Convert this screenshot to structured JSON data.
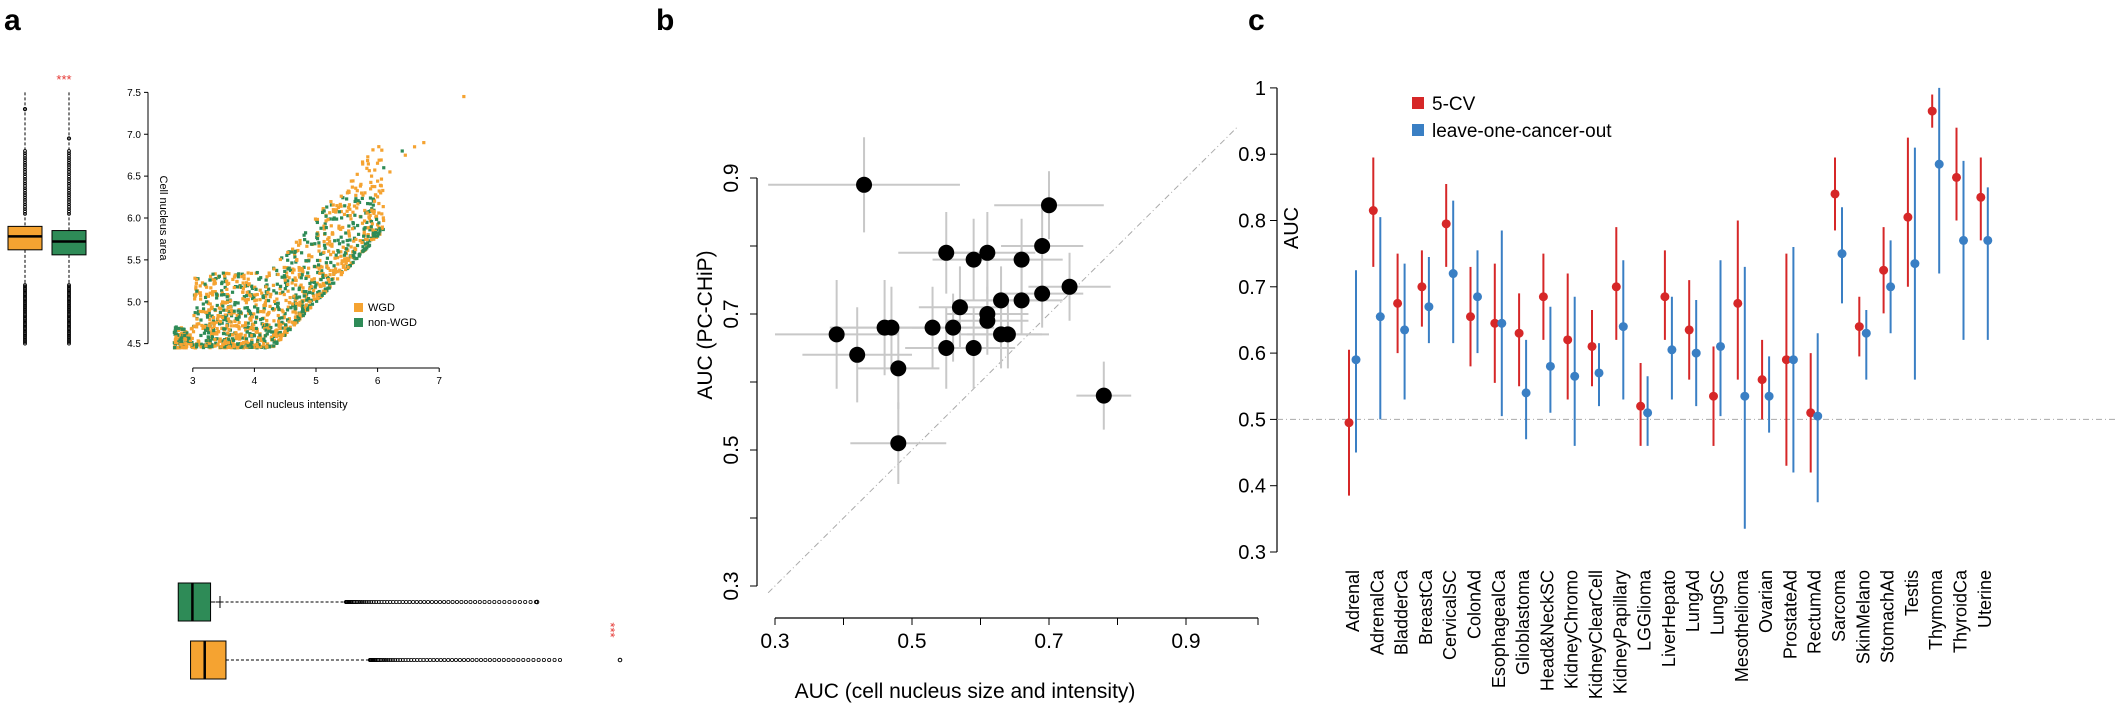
{
  "panels": {
    "a": "a",
    "b": "b",
    "c": "c"
  },
  "chart_data": [
    {
      "type": "scatter",
      "panel": "a",
      "xlabel": "Cell nucleus intensity",
      "ylabel": "Cell nucleus area",
      "xticks": [
        "3",
        "4",
        "5",
        "6",
        "7"
      ],
      "yticks": [
        "4.5",
        "5.0",
        "5.5",
        "6.0",
        "6.5",
        "7.0",
        "7.5"
      ],
      "xlim": [
        2.5,
        7.5
      ],
      "ylim": [
        4.4,
        7.6
      ],
      "legend": [
        "WGD",
        "non-WGD"
      ],
      "legend_position": "right",
      "colors": {
        "WGD": "#f5a331",
        "non-WGD": "#2e8b57"
      },
      "significance_top": "***",
      "significance_right": "***",
      "marginal_boxplots": {
        "area": {
          "WGD": {
            "q1": 5.62,
            "median": 5.78,
            "q3": 5.9
          },
          "non-WGD": {
            "q1": 5.56,
            "median": 5.72,
            "q3": 5.85
          }
        },
        "intensity": {
          "non-WGD": {
            "q1": 3.9,
            "median": 4.0,
            "q3": 4.1
          },
          "WGD": {
            "q1": 4.1,
            "median": 4.2,
            "q3": 4.35
          }
        }
      }
    },
    {
      "type": "scatter",
      "panel": "b",
      "xlabel": "AUC (cell nucleus size and intensity)",
      "ylabel": "AUC (PC-CHiP)",
      "xticks": [
        "0.3",
        "0.5",
        "0.7",
        "0.9"
      ],
      "yticks": [
        "0.3",
        "0.5",
        "0.7",
        "0.9"
      ],
      "xlim": [
        0.28,
        0.98
      ],
      "ylim": [
        0.28,
        1.0
      ],
      "diagonal": true,
      "points": [
        {
          "x": 0.43,
          "y": 0.89,
          "xerr": 0.14,
          "yerr": 0.07
        },
        {
          "x": 0.7,
          "y": 0.86,
          "xerr": 0.08,
          "yerr": 0.05
        },
        {
          "x": 0.55,
          "y": 0.79,
          "xerr": 0.07,
          "yerr": 0.06
        },
        {
          "x": 0.61,
          "y": 0.79,
          "xerr": 0.07,
          "yerr": 0.06
        },
        {
          "x": 0.69,
          "y": 0.8,
          "xerr": 0.06,
          "yerr": 0.06
        },
        {
          "x": 0.59,
          "y": 0.78,
          "xerr": 0.06,
          "yerr": 0.06
        },
        {
          "x": 0.66,
          "y": 0.78,
          "xerr": 0.06,
          "yerr": 0.06
        },
        {
          "x": 0.73,
          "y": 0.74,
          "xerr": 0.06,
          "yerr": 0.05
        },
        {
          "x": 0.69,
          "y": 0.73,
          "xerr": 0.06,
          "yerr": 0.05
        },
        {
          "x": 0.63,
          "y": 0.72,
          "xerr": 0.06,
          "yerr": 0.05
        },
        {
          "x": 0.66,
          "y": 0.72,
          "xerr": 0.06,
          "yerr": 0.05
        },
        {
          "x": 0.57,
          "y": 0.71,
          "xerr": 0.06,
          "yerr": 0.06
        },
        {
          "x": 0.61,
          "y": 0.7,
          "xerr": 0.06,
          "yerr": 0.05
        },
        {
          "x": 0.61,
          "y": 0.69,
          "xerr": 0.06,
          "yerr": 0.05
        },
        {
          "x": 0.53,
          "y": 0.68,
          "xerr": 0.07,
          "yerr": 0.06
        },
        {
          "x": 0.56,
          "y": 0.68,
          "xerr": 0.06,
          "yerr": 0.05
        },
        {
          "x": 0.46,
          "y": 0.68,
          "xerr": 0.08,
          "yerr": 0.07
        },
        {
          "x": 0.47,
          "y": 0.68,
          "xerr": 0.07,
          "yerr": 0.06
        },
        {
          "x": 0.63,
          "y": 0.67,
          "xerr": 0.06,
          "yerr": 0.05
        },
        {
          "x": 0.64,
          "y": 0.67,
          "xerr": 0.06,
          "yerr": 0.05
        },
        {
          "x": 0.39,
          "y": 0.67,
          "xerr": 0.09,
          "yerr": 0.08
        },
        {
          "x": 0.55,
          "y": 0.65,
          "xerr": 0.06,
          "yerr": 0.06
        },
        {
          "x": 0.59,
          "y": 0.65,
          "xerr": 0.06,
          "yerr": 0.06
        },
        {
          "x": 0.42,
          "y": 0.64,
          "xerr": 0.08,
          "yerr": 0.07
        },
        {
          "x": 0.48,
          "y": 0.62,
          "xerr": 0.06,
          "yerr": 0.06
        },
        {
          "x": 0.78,
          "y": 0.58,
          "xerr": 0.04,
          "yerr": 0.05
        },
        {
          "x": 0.48,
          "y": 0.51,
          "xerr": 0.07,
          "yerr": 0.06
        }
      ]
    },
    {
      "type": "scatter",
      "panel": "c",
      "ylabel": "AUC",
      "yticks": [
        "0.3",
        "0.4",
        "0.5",
        "0.6",
        "0.7",
        "0.8",
        "0.9",
        "1"
      ],
      "ylim": [
        0.3,
        1.0
      ],
      "reference_line": 0.5,
      "legend": [
        "5-CV",
        "leave-one-cancer-out"
      ],
      "legend_position": "top-left",
      "colors": {
        "5-CV": "#d62728",
        "leave-one-cancer-out": "#3a7fc4"
      },
      "categories": [
        "Adrenal",
        "AdrenalCa",
        "BladderCa",
        "BreastCa",
        "CervicalSC",
        "ColonAd",
        "EsophagealCa",
        "Glioblastoma",
        "Head&NeckSC",
        "KidneyChromo",
        "KidneyClearCell",
        "KidneyPapillary",
        "LGGlioma",
        "LiverHepato",
        "LungAd",
        "LungSC",
        "Mesothelioma",
        "Ovarian",
        "ProstateAd",
        "RectumAd",
        "Sarcoma",
        "SkinMelano",
        "StomachAd",
        "Testis",
        "Thymoma",
        "ThyroidCa",
        "Uterine"
      ],
      "series": [
        {
          "name": "5-CV",
          "values": [
            0.495,
            0.815,
            0.675,
            0.7,
            0.795,
            0.655,
            0.645,
            0.63,
            0.685,
            0.62,
            0.61,
            0.7,
            0.52,
            0.685,
            0.635,
            0.535,
            0.675,
            0.56,
            0.59,
            0.51,
            0.84,
            0.64,
            0.725,
            0.805,
            0.965,
            0.865,
            0.835
          ],
          "lower": [
            0.385,
            0.73,
            0.6,
            0.64,
            0.73,
            0.58,
            0.555,
            0.55,
            0.62,
            0.53,
            0.55,
            0.62,
            0.46,
            0.62,
            0.56,
            0.46,
            0.56,
            0.5,
            0.43,
            0.42,
            0.785,
            0.595,
            0.66,
            0.7,
            0.94,
            0.8,
            0.77
          ],
          "upper": [
            0.605,
            0.895,
            0.75,
            0.755,
            0.855,
            0.73,
            0.735,
            0.69,
            0.75,
            0.72,
            0.665,
            0.79,
            0.585,
            0.755,
            0.71,
            0.61,
            0.8,
            0.62,
            0.75,
            0.6,
            0.895,
            0.685,
            0.79,
            0.925,
            0.99,
            0.94,
            0.895
          ]
        },
        {
          "name": "leave-one-cancer-out",
          "values": [
            0.59,
            0.655,
            0.635,
            0.67,
            0.72,
            0.685,
            0.645,
            0.54,
            0.58,
            0.565,
            0.57,
            0.64,
            0.51,
            0.605,
            0.6,
            0.61,
            0.535,
            0.535,
            0.59,
            0.505,
            0.75,
            0.63,
            0.7,
            0.735,
            0.885,
            0.77,
            0.77
          ],
          "lower": [
            0.45,
            0.5,
            0.53,
            0.615,
            0.615,
            0.6,
            0.505,
            0.47,
            0.51,
            0.46,
            0.52,
            0.53,
            0.46,
            0.53,
            0.52,
            0.505,
            0.335,
            0.48,
            0.42,
            0.375,
            0.675,
            0.56,
            0.63,
            0.56,
            0.72,
            0.62,
            0.62
          ],
          "upper": [
            0.725,
            0.805,
            0.735,
            0.745,
            0.83,
            0.755,
            0.785,
            0.62,
            0.67,
            0.685,
            0.615,
            0.74,
            0.565,
            0.685,
            0.68,
            0.74,
            0.73,
            0.595,
            0.76,
            0.63,
            0.82,
            0.665,
            0.77,
            0.91,
            1.0,
            0.89,
            0.85
          ]
        }
      ]
    }
  ]
}
